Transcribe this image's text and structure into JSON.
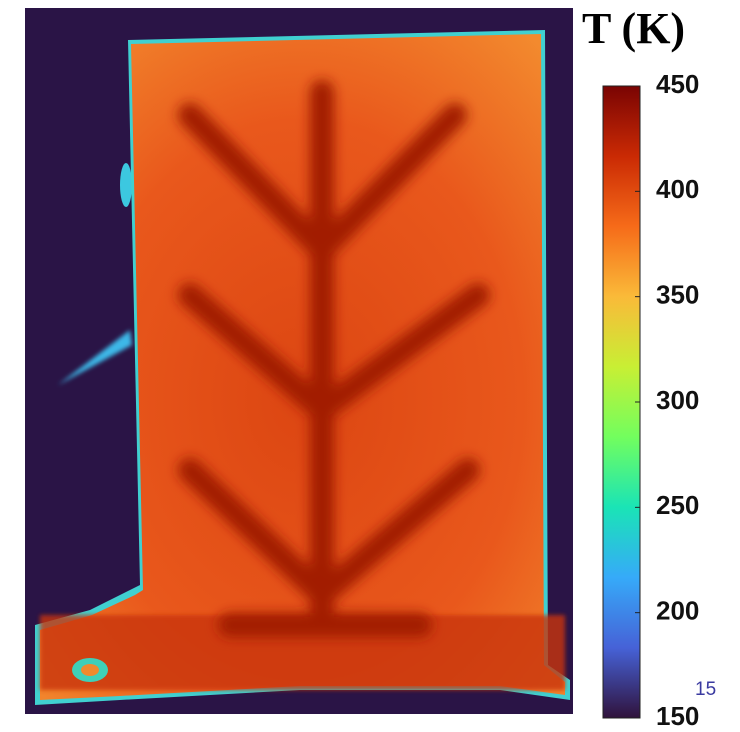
{
  "chart_data": {
    "type": "heatmap",
    "colorbar_title": "T (K)",
    "zlim": [
      150,
      450
    ],
    "zticks": [
      150,
      200,
      250,
      300,
      350,
      400,
      450
    ],
    "annotation": "15",
    "colormap": [
      "#30123b",
      "#4662d7",
      "#36aaf9",
      "#1ae4b6",
      "#72fe5e",
      "#c8ef34",
      "#faba39",
      "#f66b19",
      "#ca2a04",
      "#7a0403"
    ]
  }
}
